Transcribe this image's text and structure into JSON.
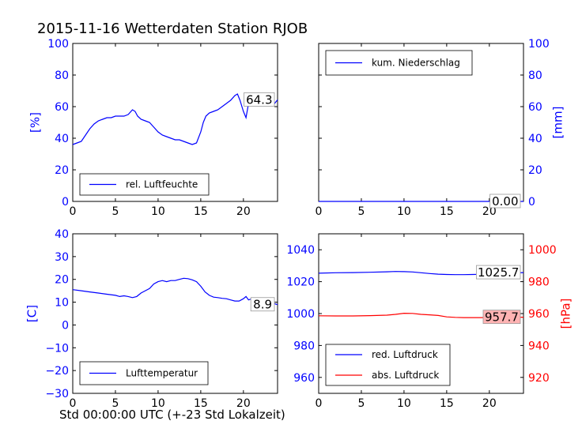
{
  "title": "2015-11-16 Wetterdaten Station RJOB",
  "xlabel": "Std 00:00:00 UTC (+-23 Std Lokalzeit)",
  "colors": {
    "blue": "#0000ff",
    "red": "#ff0000",
    "label_bg_red": "#ffb3b3"
  },
  "chart_data": [
    {
      "type": "line",
      "ylabel": "[%]",
      "xlim": [
        0,
        24
      ],
      "ylim": [
        0,
        100
      ],
      "xticks": [
        0,
        5,
        10,
        15,
        20
      ],
      "yticks": [
        0,
        20,
        40,
        60,
        80,
        100
      ],
      "legend_position": "bottom-left",
      "series": [
        {
          "name": "rel. Luftfeuchte",
          "color": "#0000ff",
          "last_label": "64.3",
          "x": [
            0,
            0.5,
            1,
            1.5,
            2,
            2.5,
            3,
            3.5,
            4,
            4.5,
            5,
            5.5,
            6,
            6.5,
            7,
            7.3,
            7.6,
            8,
            8.5,
            9,
            9.5,
            10,
            10.5,
            11,
            11.5,
            12,
            12.5,
            13,
            13.5,
            14,
            14.5,
            15,
            15.3,
            15.6,
            16,
            16.5,
            17,
            17.5,
            18,
            18.5,
            19,
            19.3,
            19.6,
            20,
            20.3,
            20.6,
            21,
            21.5,
            22,
            22.5,
            23,
            23.5,
            24
          ],
          "values": [
            36,
            37,
            38,
            42,
            46,
            49,
            51,
            52,
            53,
            53,
            54,
            54,
            54,
            55,
            58,
            57,
            54,
            52,
            51,
            50,
            47,
            44,
            42,
            41,
            40,
            39,
            39,
            38,
            37,
            36,
            37,
            44,
            50,
            54,
            56,
            57,
            58,
            60,
            62,
            64,
            67,
            68,
            64,
            57,
            53,
            62,
            63,
            63,
            63,
            64,
            61,
            61,
            64.3
          ]
        }
      ]
    },
    {
      "type": "line",
      "ylabel": "[mm]",
      "xlim": [
        0,
        24
      ],
      "ylim": [
        0,
        100
      ],
      "xticks": [
        0,
        5,
        10,
        15,
        20
      ],
      "yticks": [
        0,
        20,
        40,
        60,
        80,
        100
      ],
      "legend_position": "top-left",
      "series": [
        {
          "name": "kum. Niederschlag",
          "color": "#0000ff",
          "last_label": "0.00",
          "x": [
            0,
            24
          ],
          "values": [
            0,
            0
          ]
        }
      ]
    },
    {
      "type": "line",
      "ylabel": "[C]",
      "xlim": [
        0,
        24
      ],
      "ylim": [
        -30,
        40
      ],
      "xticks": [
        0,
        5,
        10,
        15,
        20
      ],
      "yticks": [
        -30,
        -20,
        -10,
        0,
        10,
        20,
        30,
        40
      ],
      "legend_position": "bottom-left",
      "series": [
        {
          "name": "Lufttemperatur",
          "color": "#0000ff",
          "last_label": "8.9",
          "x": [
            0,
            1,
            2,
            3,
            4,
            5,
            5.5,
            6,
            6.5,
            7,
            7.5,
            8,
            8.5,
            9,
            9.5,
            10,
            10.5,
            11,
            11.5,
            12,
            12.5,
            13,
            13.5,
            14,
            14.5,
            15,
            15.5,
            16,
            16.5,
            17,
            17.5,
            18,
            18.5,
            19,
            19.5,
            20,
            20.3,
            20.6,
            21,
            21.5,
            22,
            22.5,
            23,
            23.5,
            24
          ],
          "values": [
            15.5,
            15,
            14.5,
            14,
            13.5,
            13,
            12.5,
            12.8,
            12.5,
            12,
            12.5,
            14,
            15,
            16,
            18,
            19,
            19.5,
            19,
            19.5,
            19.5,
            20,
            20.5,
            20.3,
            19.8,
            19,
            17,
            14.5,
            13,
            12.2,
            12,
            11.7,
            11.5,
            11,
            10.5,
            10.5,
            11.5,
            12.5,
            11,
            11.5,
            11,
            10.5,
            10.5,
            10,
            9.5,
            8.9
          ]
        }
      ]
    },
    {
      "type": "line",
      "ylabel": "[hPa]",
      "xlim": [
        0,
        24
      ],
      "ylim": [
        950,
        1050
      ],
      "ylim_right": [
        910,
        1010
      ],
      "xticks": [
        0,
        5,
        10,
        15,
        20
      ],
      "yticks": [
        960,
        980,
        1000,
        1020,
        1040
      ],
      "yticks_right": [
        920,
        940,
        960,
        980,
        1000
      ],
      "legend_position": "bottom-left",
      "series": [
        {
          "name": "red. Luftdruck",
          "color": "#0000ff",
          "axis": "left",
          "last_label": "1025.7",
          "x": [
            0,
            2,
            4,
            6,
            8,
            9,
            10,
            11,
            12,
            13,
            14,
            15,
            16,
            17,
            18,
            19,
            20,
            21,
            22,
            23,
            24
          ],
          "values": [
            1025.3,
            1025.6,
            1025.7,
            1025.9,
            1026.2,
            1026.4,
            1026.3,
            1026.1,
            1025.6,
            1025.1,
            1024.7,
            1024.5,
            1024.4,
            1024.4,
            1024.5,
            1024.6,
            1024.8,
            1025.0,
            1025.3,
            1025.5,
            1025.7
          ]
        },
        {
          "name": "abs. Luftdruck",
          "color": "#ff0000",
          "axis": "right",
          "last_label": "957.7",
          "x": [
            0,
            2,
            4,
            6,
            8,
            9,
            10,
            11,
            12,
            13,
            14,
            15,
            16,
            17,
            18,
            19,
            20,
            21,
            22,
            23,
            24
          ],
          "values": [
            958.6,
            958.5,
            958.5,
            958.7,
            959.0,
            959.5,
            960.2,
            960.1,
            959.5,
            959.2,
            958.8,
            957.9,
            957.6,
            957.5,
            957.5,
            957.5,
            957.6,
            957.7,
            957.7,
            957.7,
            957.7
          ]
        }
      ]
    }
  ]
}
